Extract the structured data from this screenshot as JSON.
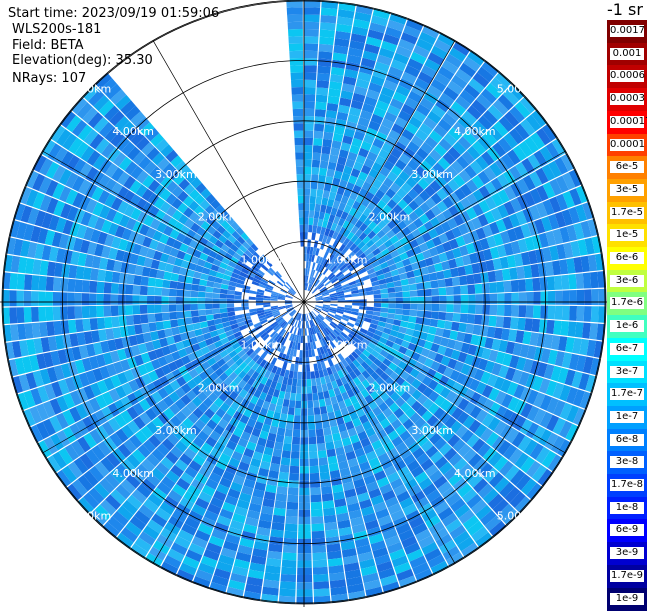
{
  "header": {
    "start_time": "Start time: 2023/09/19 01:59:06",
    "instrument": "WLS200s-181",
    "field": "Field: BETA",
    "elevation": "Elevation(deg): 35.30",
    "nrays": "NRays: 107"
  },
  "colorbar": {
    "title": "-1 sr",
    "labels": [
      "0.0017",
      "0.001",
      "0.0006",
      "0.0003",
      "0.00017",
      "0.0001",
      "6e-5",
      "3e-5",
      "1.7e-5",
      "1e-5",
      "6e-6",
      "3e-6",
      "1.7e-6",
      "1e-6",
      "6e-7",
      "3e-7",
      "1.7e-7",
      "1e-7",
      "6e-8",
      "3e-8",
      "1.7e-8",
      "1e-8",
      "6e-9",
      "3e-9",
      "1.7e-9",
      "1e-9"
    ],
    "colors": [
      "#800000",
      "#a00000",
      "#c00000",
      "#e00000",
      "#ff0000",
      "#ff4000",
      "#ff8000",
      "#ffa000",
      "#ffc000",
      "#ffe000",
      "#ffff00",
      "#c0ff40",
      "#80ff80",
      "#40ffc0",
      "#00ffff",
      "#00e0ff",
      "#00c0ff",
      "#00a0ff",
      "#0080ff",
      "#0060ff",
      "#0040ff",
      "#0020ff",
      "#0000ff",
      "#0000d0",
      "#0000a0",
      "#000070"
    ]
  },
  "chart_data": {
    "type": "polar-ppi",
    "field": "BETA",
    "units": "sr-1",
    "range_rings_km": [
      1,
      2,
      3,
      4,
      5
    ],
    "range_ring_labels": [
      "1.00km",
      "2.00km",
      "3.00km",
      "4.00km",
      "5.00km"
    ],
    "max_range_km": 5,
    "no_data_sector_deg": [
      318,
      358
    ],
    "value_range": [
      1e-09,
      0.0017
    ],
    "palette": [
      "#3aa2f2",
      "#1e87ec",
      "#0fa6ee",
      "#26b8f5",
      "#1777e3",
      "#0cc6f2",
      "#2d95ee",
      "#1b6ee0"
    ]
  }
}
